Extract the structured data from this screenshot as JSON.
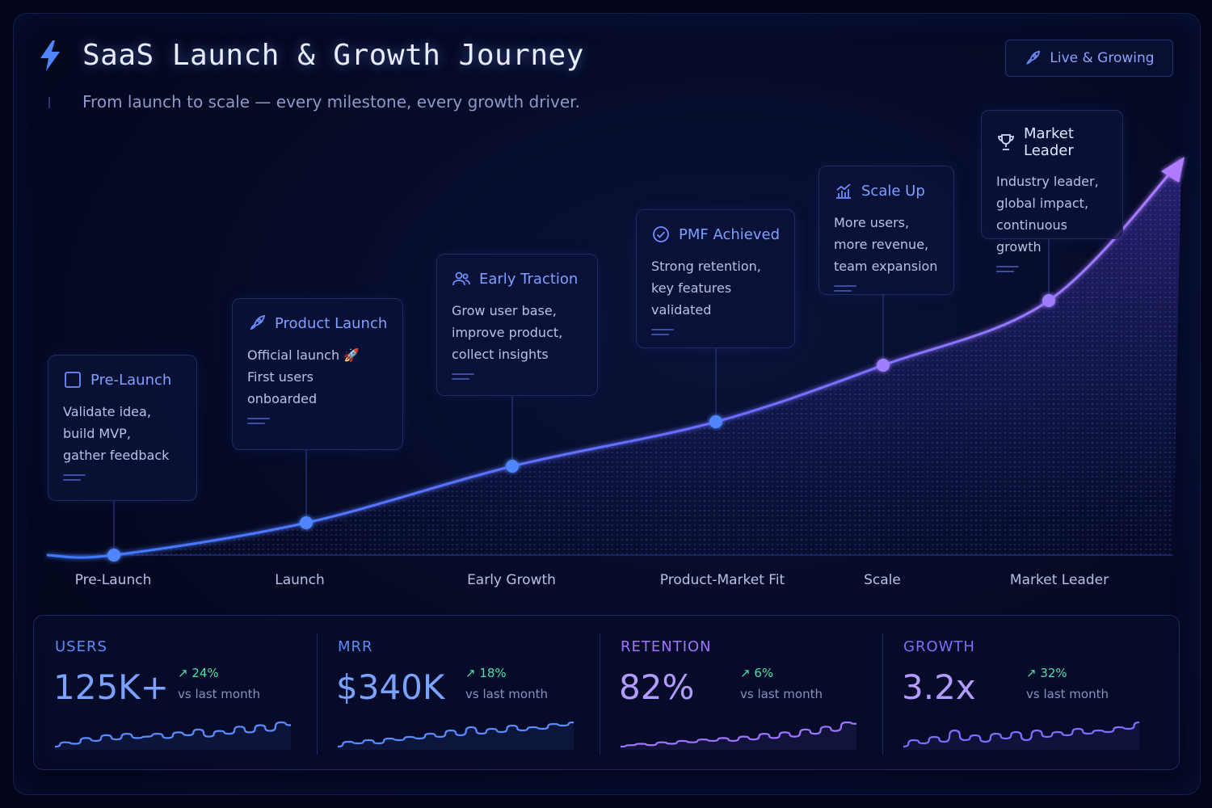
{
  "header": {
    "title": "SaaS Launch & Growth Journey",
    "subtitle": "From launch to scale — every milestone, every growth driver.",
    "status_button": "Live & Growing"
  },
  "cards": [
    {
      "icon": "square-icon",
      "title": "Pre-Launch",
      "body": "Validate idea,\nbuild MVP,\ngather feedback"
    },
    {
      "icon": "rocket-icon",
      "title": "Product Launch",
      "body": "Official launch 🚀\nFirst users\nonboarded"
    },
    {
      "icon": "users-icon",
      "title": "Early Traction",
      "body": "Grow user base,\nimprove product,\ncollect insights"
    },
    {
      "icon": "check-circle-icon",
      "title": "PMF Achieved",
      "body": "Strong retention,\nkey features\nvalidated"
    },
    {
      "icon": "bar-chart-icon",
      "title": "Scale Up",
      "body": "More users,\nmore revenue,\nteam expansion"
    },
    {
      "icon": "trophy-icon",
      "title": "Market Leader",
      "body": "Industry leader,\nglobal impact,\ncontinuous growth"
    }
  ],
  "chart_data": {
    "type": "line",
    "categories": [
      "Pre-Launch",
      "Launch",
      "Early Growth",
      "Product-Market Fit",
      "Scale",
      "Market Leader"
    ],
    "values": [
      0,
      4,
      11,
      16.5,
      23.5,
      31.5
    ],
    "ylim": [
      0,
      50
    ],
    "grid": false,
    "legend": "none"
  },
  "metrics": [
    {
      "label": "USERS",
      "value": "125K+",
      "delta": "↗ 24%",
      "vs": "vs last month",
      "color": "#5b8cff",
      "spark": [
        3,
        6,
        5,
        9,
        7,
        11,
        8,
        12,
        9,
        10,
        12,
        9,
        13,
        11,
        15,
        10,
        14,
        12,
        17,
        13,
        18,
        14,
        20,
        18
      ]
    },
    {
      "label": "MRR",
      "value": "$340K",
      "delta": "↗ 18%",
      "vs": "vs last month",
      "color": "#5b8cff",
      "spark": [
        4,
        7,
        6,
        8,
        6,
        9,
        8,
        10,
        9,
        12,
        10,
        14,
        11,
        16,
        12,
        15,
        13,
        17,
        14,
        16,
        15,
        18,
        17,
        19
      ]
    },
    {
      "label": "RETENTION",
      "value": "82%",
      "delta": "↗ 6%",
      "vs": "vs last month",
      "color": "#a074ff",
      "spark": [
        5,
        6,
        7,
        6,
        8,
        7,
        9,
        8,
        10,
        9,
        11,
        9,
        12,
        10,
        14,
        11,
        15,
        12,
        17,
        14,
        19,
        16,
        22,
        21
      ]
    },
    {
      "label": "GROWTH",
      "value": "3.2x",
      "delta": "↗ 32%",
      "vs": "vs last month",
      "color": "#7f6dff",
      "spark": [
        4,
        8,
        6,
        10,
        7,
        14,
        8,
        11,
        7,
        12,
        9,
        13,
        8,
        14,
        10,
        13,
        11,
        15,
        12,
        14,
        13,
        16,
        15,
        19
      ]
    }
  ],
  "colors": {
    "accent": "#5b8cff",
    "accent2": "#a074ff",
    "positive": "#4fe0a8"
  }
}
